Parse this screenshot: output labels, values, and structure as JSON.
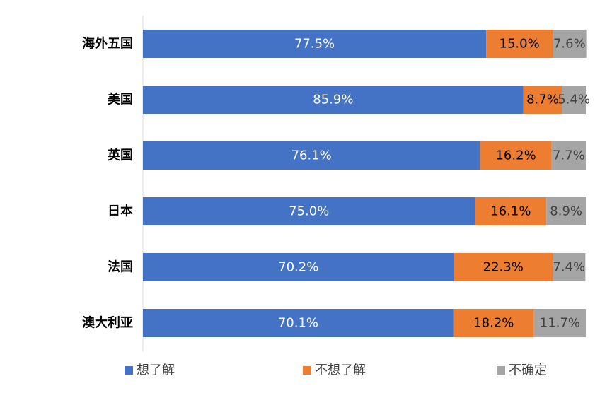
{
  "chart_data": {
    "type": "bar",
    "orientation": "horizontal",
    "stacked": true,
    "title": "",
    "xlabel": "",
    "ylabel": "",
    "categories": [
      "海外五国",
      "美国",
      "英国",
      "日本",
      "法国",
      "澳大利亚"
    ],
    "series": [
      {
        "name": "想了解",
        "color": "#4472C4",
        "label_color": "#ffffff",
        "values": [
          77.5,
          85.9,
          76.1,
          75.0,
          70.2,
          70.1
        ],
        "labels": [
          "77.5%",
          "85.9%",
          "76.1%",
          "75.0%",
          "70.2%",
          "70.1%"
        ]
      },
      {
        "name": "不想了解",
        "color": "#ED7D31",
        "label_color": "#000000",
        "values": [
          15.0,
          8.7,
          16.2,
          16.1,
          22.3,
          18.2
        ],
        "labels": [
          "15.0%",
          "8.7%",
          "16.2%",
          "16.1%",
          "22.3%",
          "18.2%"
        ]
      },
      {
        "name": "不确定",
        "color": "#A5A5A5",
        "label_color": "#404040",
        "values": [
          7.6,
          5.4,
          7.7,
          8.9,
          7.4,
          11.7
        ],
        "labels": [
          "7.6%",
          "5.4%",
          "7.7%",
          "8.9%",
          "7.4%",
          "11.7%"
        ]
      }
    ],
    "xlim": [
      0,
      100
    ],
    "grid": false,
    "legend_position": "bottom"
  }
}
